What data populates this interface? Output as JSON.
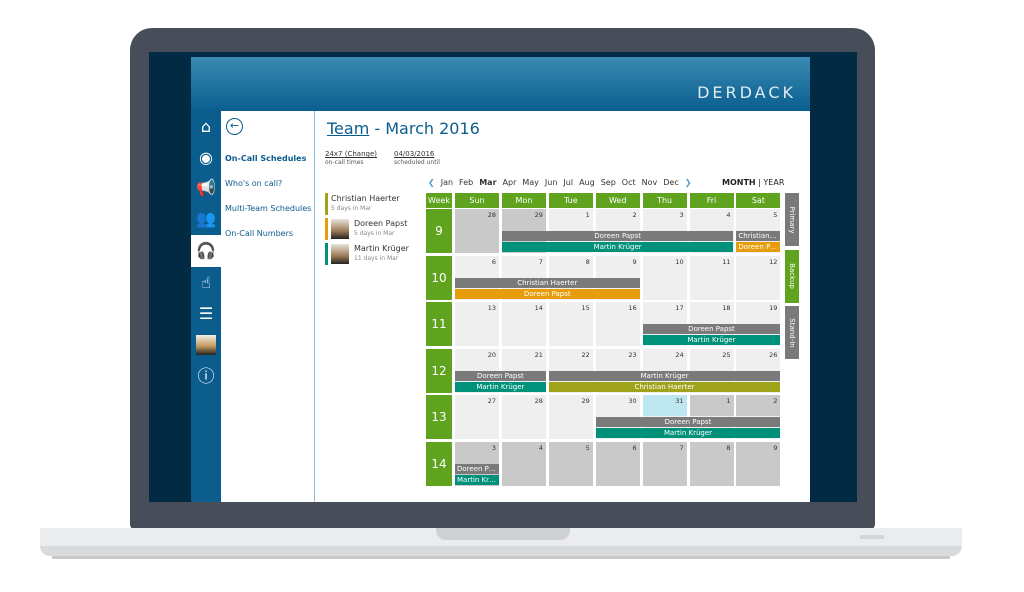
{
  "brand": "DERDACK",
  "sidebar_icons": [
    "home-icon",
    "bell-icon",
    "megaphone-icon",
    "users-icon",
    "headset-icon",
    "tap-icon",
    "phone-list-icon",
    "user-avatar",
    "help-icon"
  ],
  "nav": {
    "items": [
      {
        "label": "On-Call Schedules",
        "active": true
      },
      {
        "label": "Who's on call?"
      },
      {
        "label": "Multi-Team Schedules"
      },
      {
        "label": "On-Call Numbers"
      }
    ]
  },
  "header": {
    "team": "Team",
    "title_rest": " - March 2016"
  },
  "meta": [
    {
      "value": "24x7 (Change)",
      "label": "on-call times"
    },
    {
      "value": "04/03/2016",
      "label": "scheduled until"
    }
  ],
  "people": [
    {
      "name": "Christian Haerter",
      "days": "5 days in Mar",
      "color": "#9ea31a",
      "photo": false
    },
    {
      "name": "Doreen Papst",
      "days": "5 days in Mar",
      "color": "#e79c0c",
      "photo": true
    },
    {
      "name": "Martin Krüger",
      "days": "11 days in Mar",
      "color": "#00917a",
      "photo": true
    }
  ],
  "months": [
    "Jan",
    "Feb",
    "Mar",
    "Apr",
    "May",
    "Jun",
    "Jul",
    "Aug",
    "Sep",
    "Oct",
    "Nov",
    "Dec"
  ],
  "current_month": "Mar",
  "view": {
    "month": "MONTH",
    "sep": "|",
    "year": "YEAR"
  },
  "week_label": "Week",
  "days": [
    "Sun",
    "Mon",
    "Tue",
    "Wed",
    "Thu",
    "Fri",
    "Sat"
  ],
  "weeks": [
    {
      "week": "9",
      "dates": [
        "28",
        "29",
        "1",
        "2",
        "3",
        "4",
        "5"
      ],
      "out": [
        0,
        1
      ],
      "out_top": [
        1
      ]
    },
    {
      "week": "10",
      "dates": [
        "6",
        "7",
        "8",
        "9",
        "10",
        "11",
        "12"
      ]
    },
    {
      "week": "11",
      "dates": [
        "13",
        "14",
        "15",
        "16",
        "17",
        "18",
        "19"
      ]
    },
    {
      "week": "12",
      "dates": [
        "20",
        "21",
        "22",
        "23",
        "24",
        "25",
        "26"
      ]
    },
    {
      "week": "13",
      "dates": [
        "27",
        "28",
        "29",
        "30",
        "31",
        "1",
        "2"
      ],
      "today": 4,
      "out_top": [
        5,
        6
      ]
    },
    {
      "week": "14",
      "dates": [
        "3",
        "4",
        "5",
        "6",
        "7",
        "8",
        "9"
      ],
      "out": [
        0,
        1,
        2,
        3,
        4,
        5,
        6
      ]
    }
  ],
  "shifts": [
    {
      "row": 0,
      "start": 1,
      "span": 5,
      "slot": 0,
      "label": "Doreen Papst",
      "color": "#7a7a7a"
    },
    {
      "row": 0,
      "start": 1,
      "span": 5,
      "slot": 1,
      "label": "Martin Krüger",
      "color": "#00917a"
    },
    {
      "row": 0,
      "start": 6,
      "span": 1,
      "slot": 0,
      "label": "Christian Haerter",
      "color": "#7a7a7a"
    },
    {
      "row": 0,
      "start": 6,
      "span": 1,
      "slot": 1,
      "label": "Doreen Papst",
      "color": "#e79c0c"
    },
    {
      "row": 1,
      "start": 0,
      "span": 4,
      "slot": 0,
      "label": "Christian Haerter",
      "color": "#7a7a7a"
    },
    {
      "row": 1,
      "start": 0,
      "span": 4,
      "slot": 1,
      "label": "Doreen Papst",
      "color": "#e79c0c"
    },
    {
      "row": 2,
      "start": 4,
      "span": 3,
      "slot": 0,
      "label": "Doreen Papst",
      "color": "#7a7a7a"
    },
    {
      "row": 2,
      "start": 4,
      "span": 3,
      "slot": 1,
      "label": "Martin Krüger",
      "color": "#00917a"
    },
    {
      "row": 3,
      "start": 0,
      "span": 2,
      "slot": 0,
      "label": "Doreen Papst",
      "color": "#7a7a7a"
    },
    {
      "row": 3,
      "start": 0,
      "span": 2,
      "slot": 1,
      "label": "Martin Krüger",
      "color": "#00917a"
    },
    {
      "row": 3,
      "start": 2,
      "span": 5,
      "slot": 0,
      "label": "Martin Krüger",
      "color": "#7a7a7a"
    },
    {
      "row": 3,
      "start": 2,
      "span": 5,
      "slot": 1,
      "label": "Christian Haerter",
      "color": "#9ea31a"
    },
    {
      "row": 4,
      "start": 3,
      "span": 4,
      "slot": 0,
      "label": "Doreen Papst",
      "color": "#7a7a7a"
    },
    {
      "row": 4,
      "start": 3,
      "span": 4,
      "slot": 1,
      "label": "Martin Krüger",
      "color": "#00917a"
    },
    {
      "row": 5,
      "start": 0,
      "span": 1,
      "slot": 0,
      "label": "Doreen Papst",
      "color": "#7a7a7a"
    },
    {
      "row": 5,
      "start": 0,
      "span": 1,
      "slot": 1,
      "label": "Martin Krüger",
      "color": "#00917a"
    }
  ],
  "roles": [
    {
      "label": "Primary",
      "color": "#7a7a7a"
    },
    {
      "label": "Backup",
      "color": "#5fa31e"
    },
    {
      "label": "Stand-In",
      "color": "#7a7a7a"
    }
  ]
}
